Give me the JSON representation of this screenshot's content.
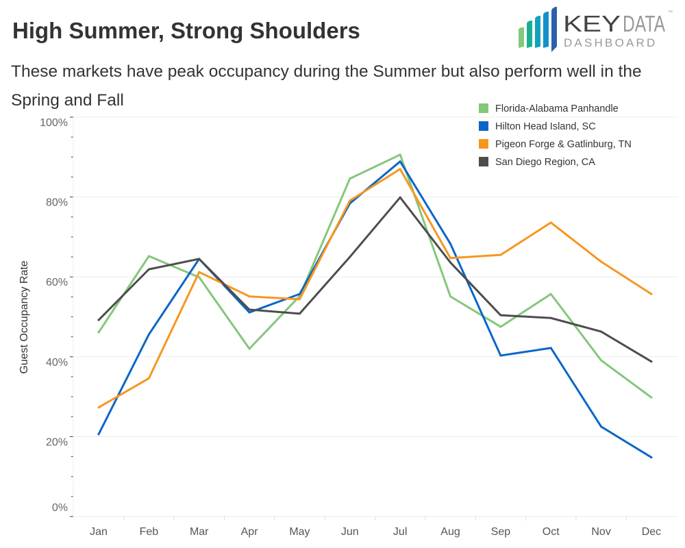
{
  "header": {
    "title": "High Summer, Strong Shoulders",
    "subtitle": "These markets have peak occupancy during the Summer but also perform well in the Spring and Fall"
  },
  "logo": {
    "text_top": "KEYDATA",
    "text_bottom": "DASHBOARD",
    "trademark": "™"
  },
  "chart_data": {
    "type": "line",
    "title": "High Summer, Strong Shoulders",
    "xlabel": "",
    "ylabel": "Guest Occupancy Rate",
    "categories": [
      "Jan",
      "Feb",
      "Mar",
      "Apr",
      "May",
      "Jun",
      "Jul",
      "Aug",
      "Sep",
      "Oct",
      "Nov",
      "Dec"
    ],
    "ylim": [
      0,
      100
    ],
    "yticks": [
      0,
      20,
      40,
      60,
      80,
      100
    ],
    "ytick_labels": [
      "0%",
      "20%",
      "40%",
      "60%",
      "80%",
      "100%"
    ],
    "grid": true,
    "legend_placement": "top-right",
    "series": [
      {
        "name": "Florida-Alabama Panhandle",
        "color": "#84c77b",
        "values": [
          46.1,
          65.2,
          59.9,
          42.0,
          55.2,
          84.6,
          90.6,
          55.1,
          47.5,
          55.7,
          39.1,
          29.8
        ]
      },
      {
        "name": "Hilton Head Island, SC",
        "color": "#0a66c8",
        "values": [
          20.6,
          45.6,
          64.5,
          51.1,
          55.7,
          78.4,
          88.9,
          68.3,
          40.3,
          42.2,
          22.5,
          14.8
        ]
      },
      {
        "name": "Pigeon Forge & Gatlinburg, TN",
        "color": "#f7961f",
        "values": [
          27.3,
          34.6,
          61.2,
          55.1,
          54.4,
          79.1,
          87.0,
          64.7,
          65.5,
          73.6,
          63.8,
          55.7
        ]
      },
      {
        "name": "San Diego Region, CA",
        "color": "#4d4d4d",
        "values": [
          49.2,
          61.9,
          64.5,
          51.8,
          50.8,
          65.0,
          79.9,
          63.6,
          50.4,
          49.7,
          46.3,
          38.8
        ]
      }
    ]
  }
}
